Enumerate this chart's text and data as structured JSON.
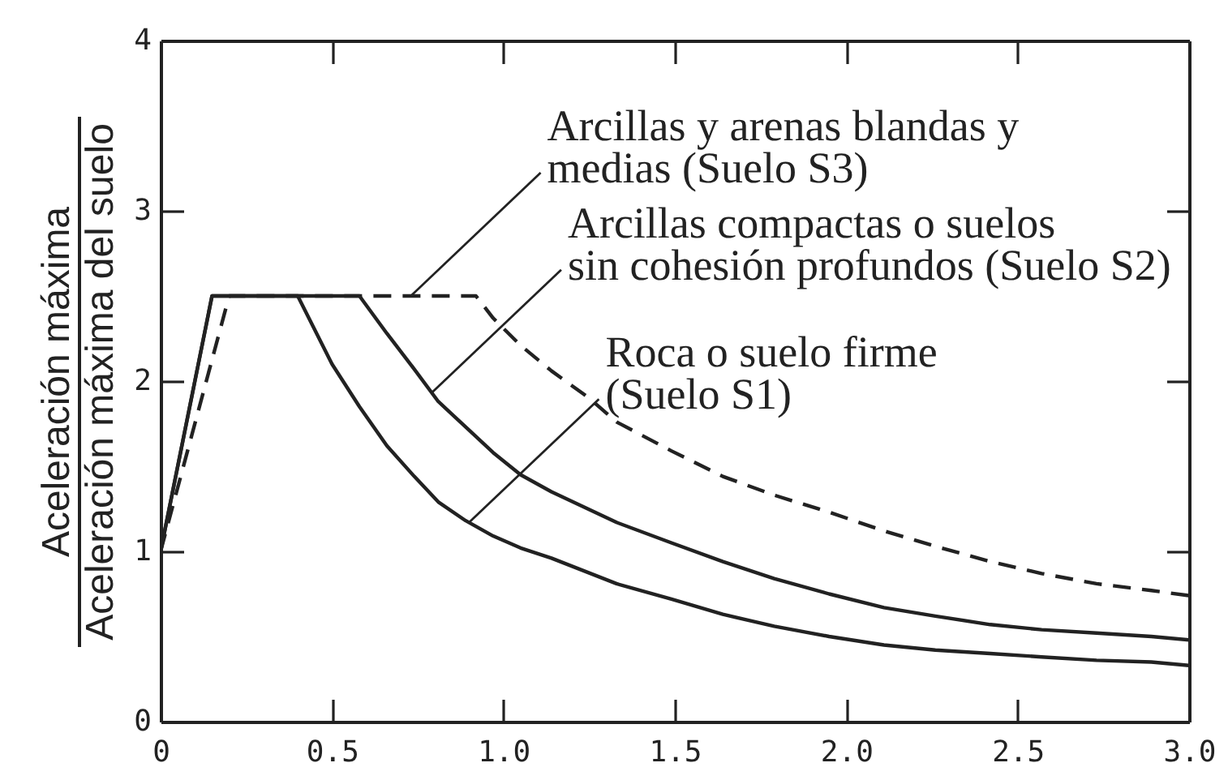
{
  "chart_data": {
    "type": "line",
    "ylabel": "Aceleración máxima\nAceleración máxima del suelo",
    "xlim": [
      0,
      3
    ],
    "ylim": [
      0,
      4
    ],
    "xticks": [
      0,
      0.5,
      {
        "value": 1,
        "label": "1.0"
      },
      1.5,
      {
        "value": 2,
        "label": "2.0"
      },
      2.5,
      {
        "value": 3,
        "label": "3.0"
      }
    ],
    "yticks": [
      0,
      1,
      2,
      3,
      4
    ],
    "line_style": "solid",
    "series": [
      {
        "color": "#222222",
        "x": [
          0,
          0.15,
          0.4,
          0.5,
          0.58,
          0.66,
          0.74,
          0.81,
          0.89,
          0.97,
          1.05,
          1.14,
          1.33,
          1.49,
          1.64,
          1.79,
          1.95,
          2.11,
          2.26,
          2.42,
          2.57,
          2.73,
          2.89,
          3.0
        ],
        "values": [
          1,
          2.5,
          2.5,
          2.1,
          1.85,
          1.62,
          1.44,
          1.29,
          1.18,
          1.09,
          1.02,
          0.96,
          0.81,
          0.72,
          0.63,
          0.56,
          0.5,
          0.45,
          0.42,
          0.4,
          0.38,
          0.36,
          0.35,
          0.33
        ]
      },
      {
        "color": "#222222",
        "x": [
          0,
          0.15,
          0.58,
          0.66,
          0.74,
          0.81,
          0.89,
          0.97,
          1.05,
          1.14,
          1.33,
          1.49,
          1.64,
          1.79,
          1.95,
          2.11,
          2.26,
          2.42,
          2.57,
          2.73,
          2.89,
          3.0
        ],
        "values": [
          1,
          2.5,
          2.5,
          2.28,
          2.07,
          1.88,
          1.73,
          1.58,
          1.45,
          1.35,
          1.17,
          1.05,
          0.94,
          0.84,
          0.75,
          0.67,
          0.62,
          0.57,
          0.54,
          0.52,
          0.5,
          0.48
        ]
      },
      {
        "color": "#222222",
        "line_style": "dashed",
        "x": [
          0,
          0.2,
          0.92,
          0.97,
          1.05,
          1.14,
          1.25,
          1.33,
          1.49,
          1.64,
          1.79,
          1.95,
          2.11,
          2.26,
          2.42,
          2.57,
          2.73,
          2.89,
          3.0
        ],
        "values": [
          1,
          2.5,
          2.5,
          2.37,
          2.21,
          2.06,
          1.9,
          1.76,
          1.59,
          1.44,
          1.33,
          1.23,
          1.12,
          1.03,
          0.94,
          0.87,
          0.81,
          0.77,
          0.74
        ]
      }
    ],
    "annotations": [
      {
        "text": "Arcillas y arenas blandas y\nmedias (Suelo S3)",
        "x": 0.73,
        "y": 2.5
      },
      {
        "text": "Arcillas compactas o suelos\nsin cohesión profundos (Suelo S2)",
        "x": 0.79,
        "y": 1.93
      },
      {
        "text": "Roca o suelo firme\n(Suelo S1)",
        "x": 0.9,
        "y": 1.17
      }
    ]
  }
}
